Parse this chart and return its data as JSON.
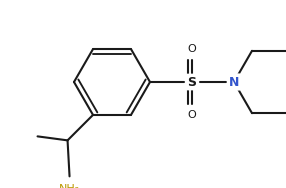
{
  "background": "#ffffff",
  "line_color": "#1a1a1a",
  "n_color": "#3355cc",
  "nh2_color": "#bb9900",
  "line_width": 1.5,
  "figsize": [
    2.86,
    1.88
  ],
  "dpi": 100,
  "xlim": [
    0,
    286
  ],
  "ylim": [
    0,
    188
  ]
}
